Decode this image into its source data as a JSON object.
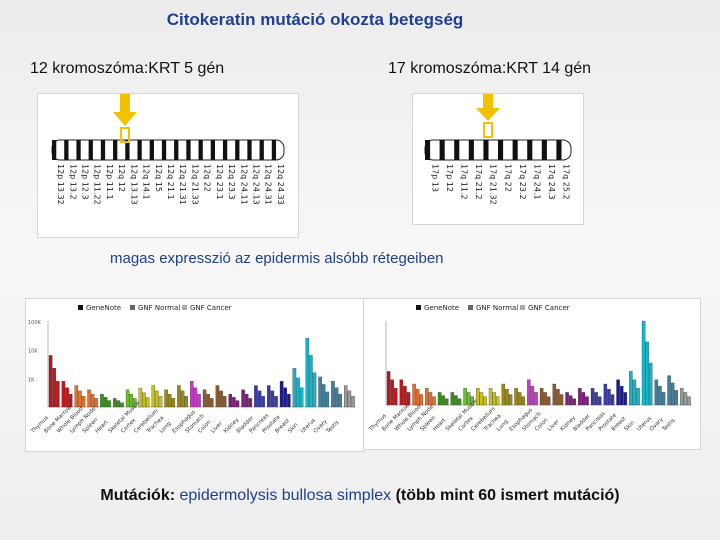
{
  "title": "Citokeratin mutáció  okozta betegség",
  "left_chromosome": {
    "label": "12 kromoszóma:KRT 5 gén",
    "bands": [
      "12p 13.32",
      "12p 13.2",
      "12p 12.3",
      "12p 11.22",
      "12p 11.1",
      "12q 12",
      "12q 13.13",
      "12q 14.1",
      "12q 15",
      "12q 21.1",
      "12q 21.31",
      "12q 21.33",
      "12q 22",
      "12q 23.1",
      "12q 23.3",
      "12q 24.11",
      "12q 24.13",
      "12q 24.31",
      "12q 24.33"
    ]
  },
  "right_chromosome": {
    "label": "17 kromoszóma:KRT 14 gén",
    "bands": [
      "17p 13",
      "17p 12",
      "17q 11.2",
      "17q 21.2",
      "17q 21.32",
      "17q 22",
      "17q 23.2",
      "17q 24.1",
      "17q 24.3",
      "17q 25.2"
    ]
  },
  "expression_note": "magas expresszió az epidermis alsóbb rétegeiben",
  "mutations": {
    "prefix": "Mutációk: ",
    "disease": "epidermolysis bullosa simplex",
    "suffix": " (több mint 60 ismert mutáció)"
  },
  "chart_data": [
    {
      "type": "bar",
      "legend": [
        "GeneNote",
        "GNF Normal",
        "GNF Cancer"
      ],
      "legend_placement": "top",
      "yticks": [
        "100K",
        "10K",
        "1K"
      ],
      "categories": [
        "Thymus",
        "Bone Marrow",
        "Whole Blood",
        "Lymph Node",
        "Spleen",
        "Heart",
        "Skeletal Muscle",
        "Cortex",
        "Cerebellum",
        "Trachea",
        "Lung",
        "Esophagus",
        "Stomach",
        "Colon",
        "Liver",
        "Kidney",
        "Bladder",
        "Pancreas",
        "Prostate",
        "Breast",
        "Skin",
        "Uterus",
        "Ovary",
        "Testis"
      ],
      "values": [
        0.6,
        0.3,
        0.25,
        0.2,
        0.15,
        0.1,
        0.2,
        0.22,
        0.25,
        0.2,
        0.25,
        0.3,
        0.2,
        0.25,
        0.15,
        0.2,
        0.25,
        0.25,
        0.3,
        0.45,
        0.8,
        0.35,
        0.3,
        0.25
      ]
    },
    {
      "type": "bar",
      "legend": [
        "GeneNote",
        "GNF Normal",
        "GNF Cancer"
      ],
      "legend_placement": "top",
      "categories": [
        "Thymus",
        "Bone Marrow",
        "Whole Blood",
        "Lymph Node",
        "Spleen",
        "Heart",
        "Skeletal Muscle",
        "Cortex",
        "Cerebellum",
        "Trachea",
        "Lung",
        "Esophagus",
        "Stomach",
        "Colon",
        "Liver",
        "Kidney",
        "Bladder",
        "Pancreas",
        "Prostate",
        "Breast",
        "Skin",
        "Uterus",
        "Ovary",
        "Testis"
      ],
      "values": [
        0.4,
        0.3,
        0.25,
        0.2,
        0.15,
        0.15,
        0.2,
        0.2,
        0.2,
        0.25,
        0.2,
        0.3,
        0.2,
        0.25,
        0.15,
        0.2,
        0.2,
        0.25,
        0.3,
        0.4,
        1.0,
        0.3,
        0.35,
        0.2
      ]
    }
  ],
  "colors": {
    "title": "#1f3f8f",
    "arrow": "#f2c200",
    "bar_colors": [
      "#c0151b",
      "#e8702a",
      "#3a8f1e",
      "#6bbf2e",
      "#c9c21e",
      "#9a8b13",
      "#c63bc6",
      "#8c5a2e",
      "#7b1f7a",
      "#3a3aa8",
      "#1b1b8f",
      "#13b7c9",
      "#3f7f9f",
      "#999999"
    ]
  }
}
